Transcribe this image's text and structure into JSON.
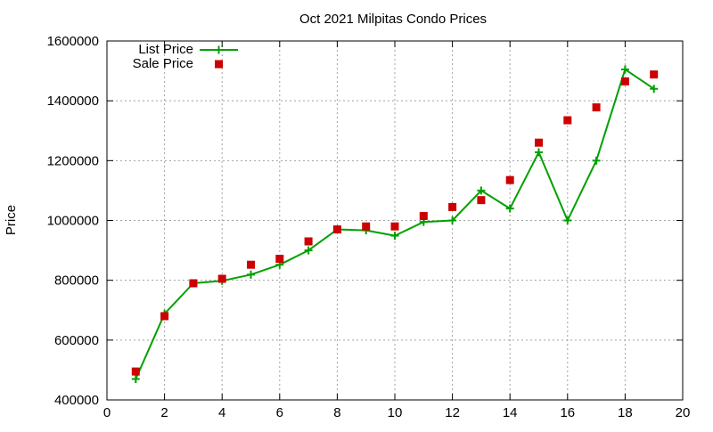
{
  "chart_data": {
    "type": "line",
    "title": "Oct 2021 Milpitas Condo Prices",
    "xlabel": "",
    "ylabel": "Price",
    "xlim": [
      0,
      20
    ],
    "ylim": [
      400000,
      1600000
    ],
    "x_ticks": [
      0,
      2,
      4,
      6,
      8,
      10,
      12,
      14,
      16,
      18,
      20
    ],
    "y_ticks": [
      400000,
      600000,
      800000,
      1000000,
      1200000,
      1400000,
      1600000
    ],
    "grid": true,
    "legend_position": "top-left",
    "series": [
      {
        "name": "List Price",
        "style": "line-with-plus-markers",
        "color": "#00a000",
        "x": [
          1,
          2,
          3,
          4,
          5,
          6,
          7,
          8,
          9,
          10,
          11,
          12,
          13,
          14,
          15,
          16,
          17,
          18,
          19
        ],
        "y": [
          470000,
          688000,
          790000,
          798000,
          819000,
          852000,
          900000,
          970000,
          967000,
          949000,
          995000,
          1000000,
          1100000,
          1040000,
          1228000,
          1000000,
          1200000,
          1505000,
          1440000
        ]
      },
      {
        "name": "Sale Price",
        "style": "square-markers",
        "color": "#cc0000",
        "x": [
          1,
          2,
          3,
          4,
          5,
          6,
          7,
          8,
          9,
          10,
          11,
          12,
          13,
          14,
          15,
          16,
          17,
          18,
          19
        ],
        "y": [
          495000,
          680000,
          790000,
          805000,
          852000,
          872000,
          930000,
          970000,
          980000,
          980000,
          1015000,
          1045000,
          1068000,
          1135000,
          1260000,
          1335000,
          1378000,
          1465000,
          1488000
        ]
      }
    ]
  }
}
